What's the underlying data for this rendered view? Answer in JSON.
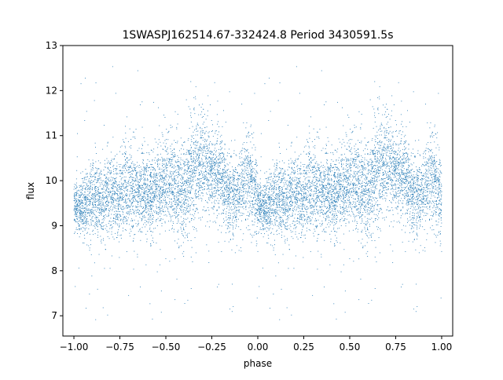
{
  "chart_data": {
    "type": "scatter",
    "title": "1SWASPJ162514.67-332424.8 Period 3430591.5s",
    "xlabel": "phase",
    "ylabel": "flux",
    "xlim": [
      -1.06,
      1.06
    ],
    "ylim": [
      6.55,
      13.0
    ],
    "xticks": [
      -1.0,
      -0.75,
      -0.5,
      -0.25,
      0.0,
      0.25,
      0.5,
      0.75,
      1.0
    ],
    "xtick_labels": [
      "−1.00",
      "−0.75",
      "−0.50",
      "−0.25",
      "0.00",
      "0.25",
      "0.50",
      "0.75",
      "1.00"
    ],
    "yticks": [
      7,
      8,
      9,
      10,
      11,
      12,
      13
    ],
    "ytick_labels": [
      "7",
      "8",
      "9",
      "10",
      "11",
      "12",
      "13"
    ],
    "grid": false,
    "legend": "none",
    "marker_color": "#1f77b4",
    "profile": {
      "phase": [
        0.0,
        0.05,
        0.1,
        0.15,
        0.2,
        0.25,
        0.3,
        0.35,
        0.4,
        0.45,
        0.5,
        0.55,
        0.6,
        0.65,
        0.7,
        0.75,
        0.8,
        0.85,
        0.9,
        0.95,
        1.0
      ],
      "median_flux": [
        9.4,
        9.45,
        9.6,
        9.5,
        9.8,
        9.7,
        9.8,
        9.7,
        9.7,
        9.7,
        10.0,
        9.9,
        9.7,
        10.2,
        10.4,
        10.2,
        10.1,
        9.6,
        9.8,
        10.1,
        9.6
      ],
      "spread": [
        0.25,
        0.3,
        0.45,
        0.4,
        0.5,
        0.45,
        0.5,
        0.45,
        0.45,
        0.45,
        0.5,
        0.55,
        0.5,
        0.6,
        0.5,
        0.45,
        0.5,
        0.5,
        0.45,
        0.5,
        0.45
      ]
    },
    "notes_visible_outliers_range": [
      6.8,
      12.7
    ]
  }
}
